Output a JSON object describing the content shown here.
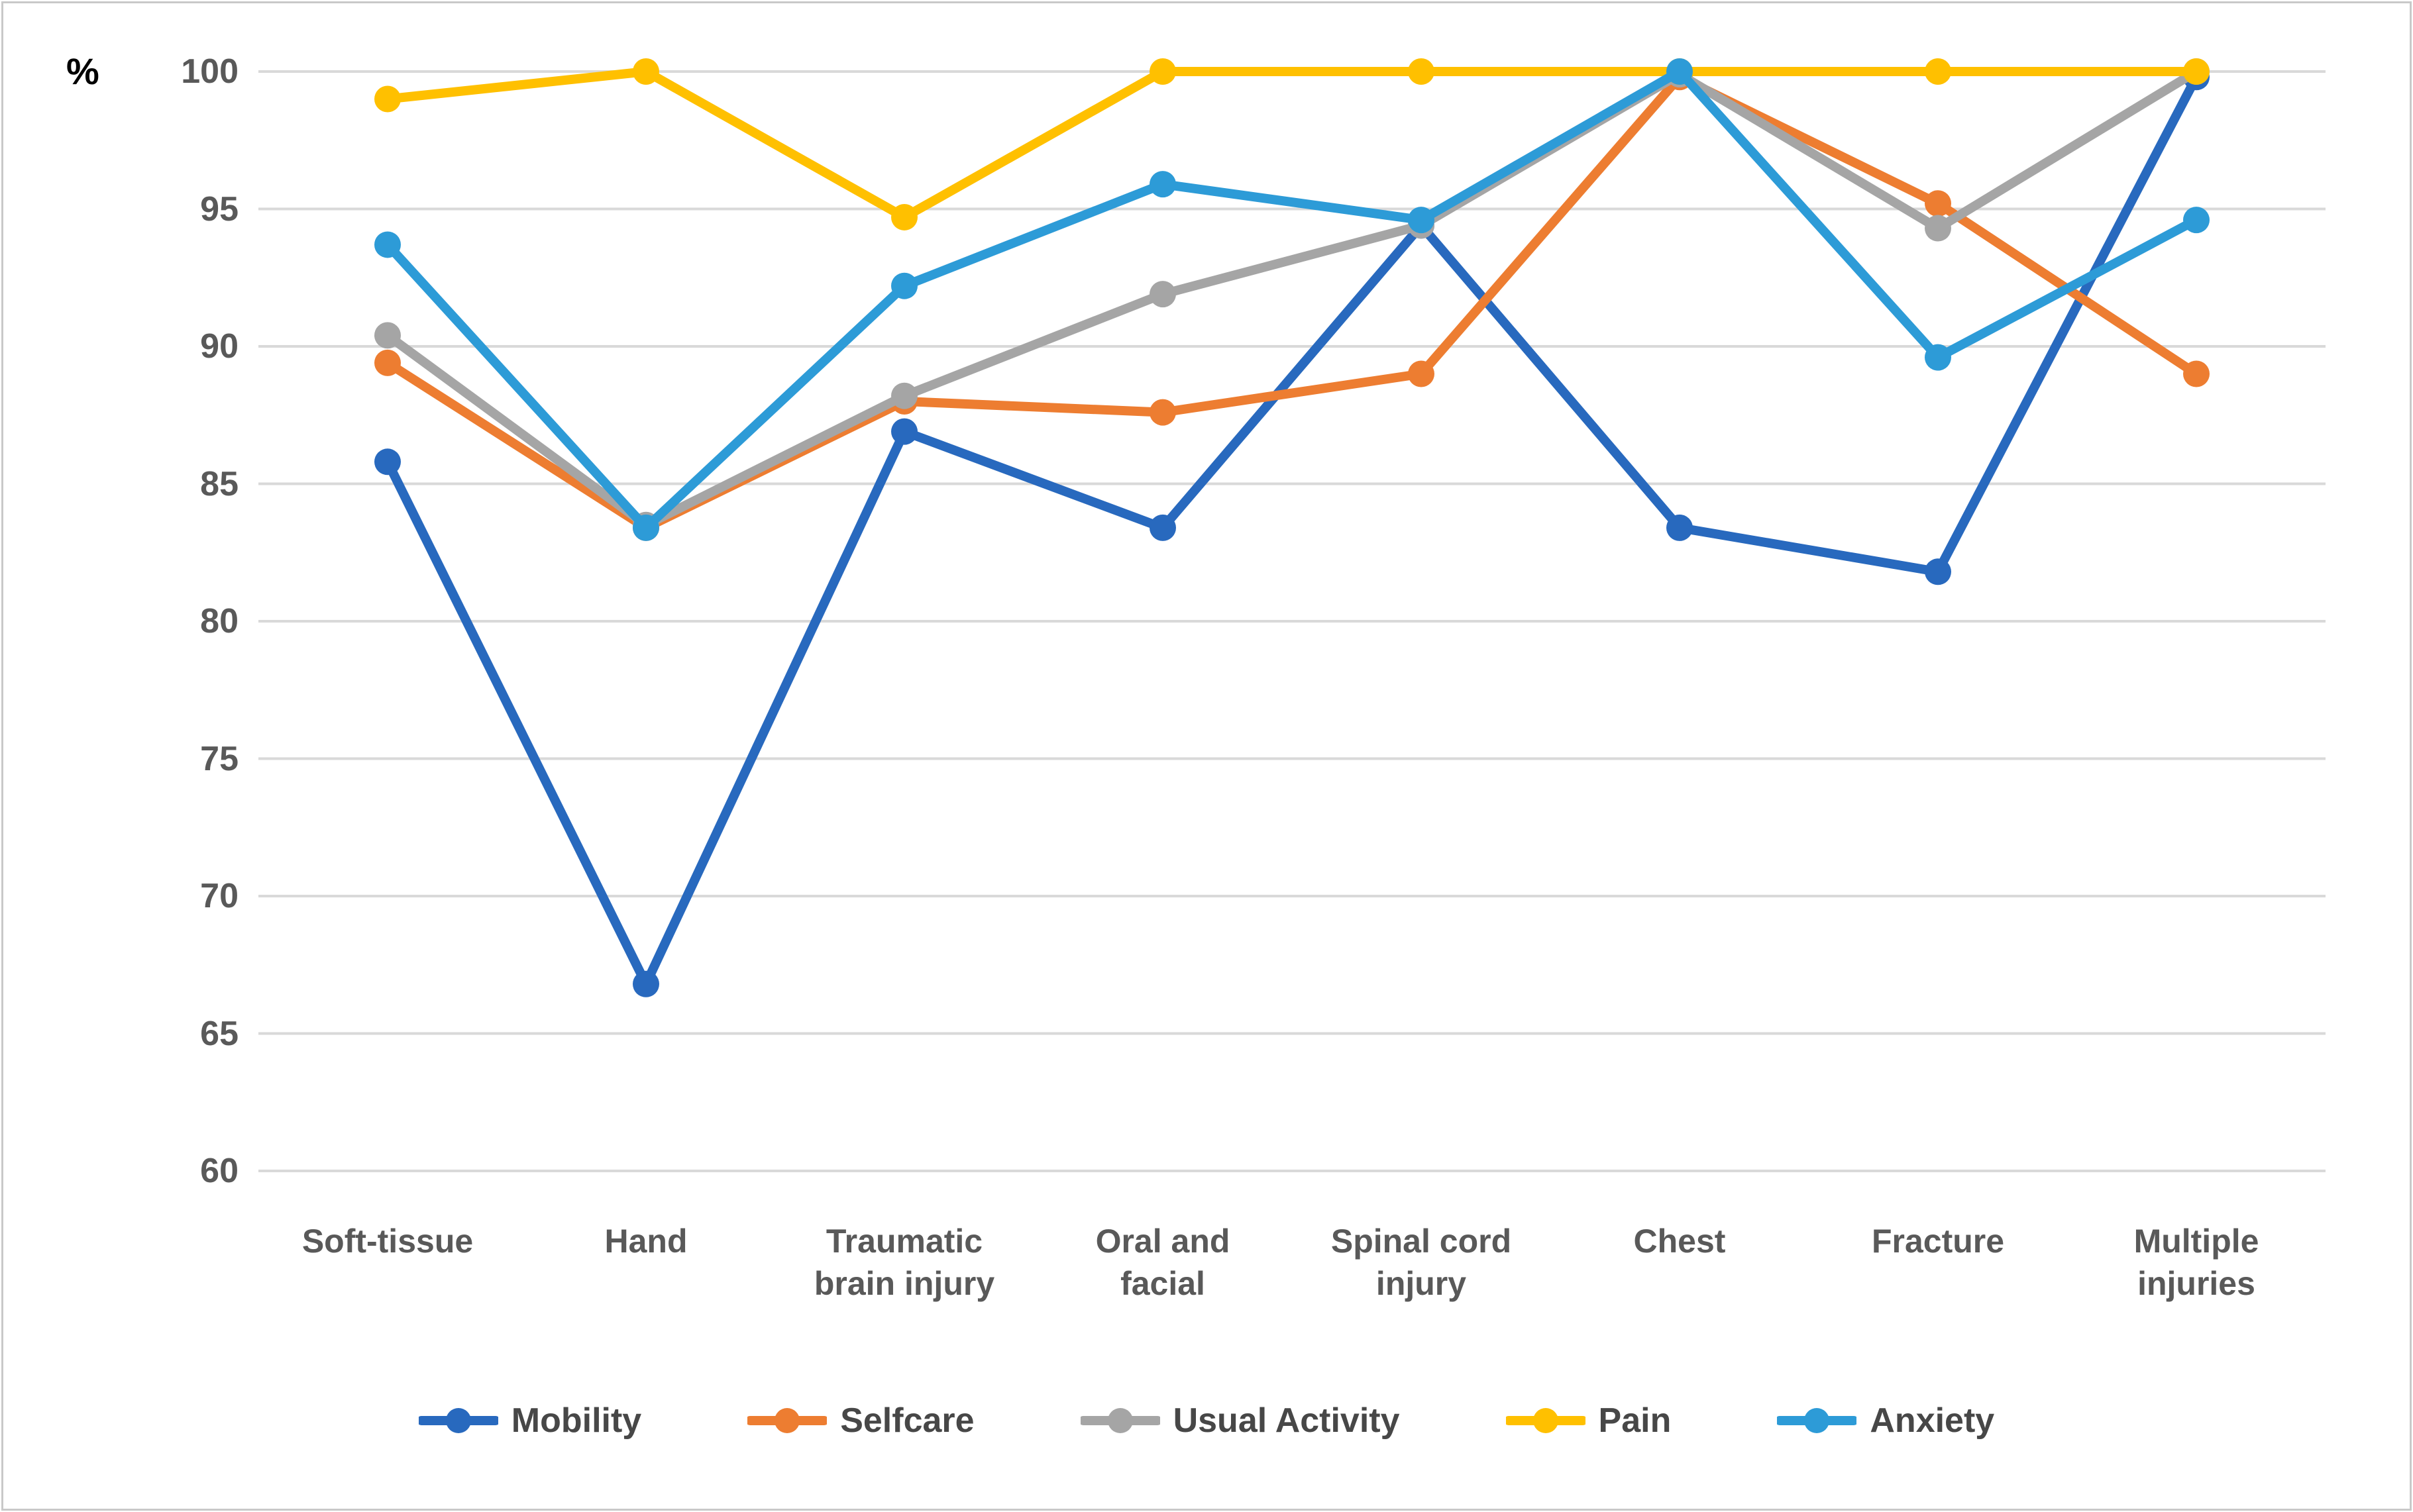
{
  "chart_data": {
    "type": "line",
    "title": "",
    "unit_label": "%",
    "xlabel": "",
    "ylabel": "%",
    "grid": true,
    "legend_position": "bottom",
    "marker": "circle",
    "categories": [
      "Soft-tissue",
      "Hand",
      "Traumatic\nbrain injury",
      "Oral and\nfacial",
      "Spinal cord\ninjury",
      "Chest",
      "Fracture",
      "Multiple\ninjuries"
    ],
    "y_axis": {
      "min": 60,
      "max": 100,
      "step": 5,
      "ticks": [
        "100",
        "95",
        "90",
        "85",
        "80",
        "75",
        "70",
        "65",
        "60"
      ]
    },
    "series": [
      {
        "name": "Mobility",
        "color": "#2869BE",
        "values": [
          85.8,
          66.8,
          86.9,
          83.4,
          94.4,
          83.4,
          81.8,
          99.8
        ]
      },
      {
        "name": "Selfcare",
        "color": "#ED7D31",
        "values": [
          89.4,
          83.4,
          88.0,
          87.6,
          89.0,
          99.8,
          95.2,
          89.0
        ]
      },
      {
        "name": "Usual Activity",
        "color": "#A5A5A5",
        "values": [
          90.4,
          83.5,
          88.2,
          91.9,
          94.4,
          99.9,
          94.3,
          100.0
        ]
      },
      {
        "name": "Pain",
        "color": "#FFC000",
        "values": [
          99.0,
          100.0,
          94.7,
          100.0,
          100.0,
          100.0,
          100.0,
          100.0
        ]
      },
      {
        "name": "Anxiety",
        "color": "#2D9BD7",
        "values": [
          93.7,
          83.4,
          92.2,
          95.9,
          94.6,
          100.0,
          89.6,
          94.6
        ]
      }
    ]
  },
  "colors": {
    "grid": "#d9d9d9",
    "axis_text": "#595959",
    "legend_text": "#474747",
    "frame_border": "#c9c9c9",
    "background": "#ffffff"
  }
}
